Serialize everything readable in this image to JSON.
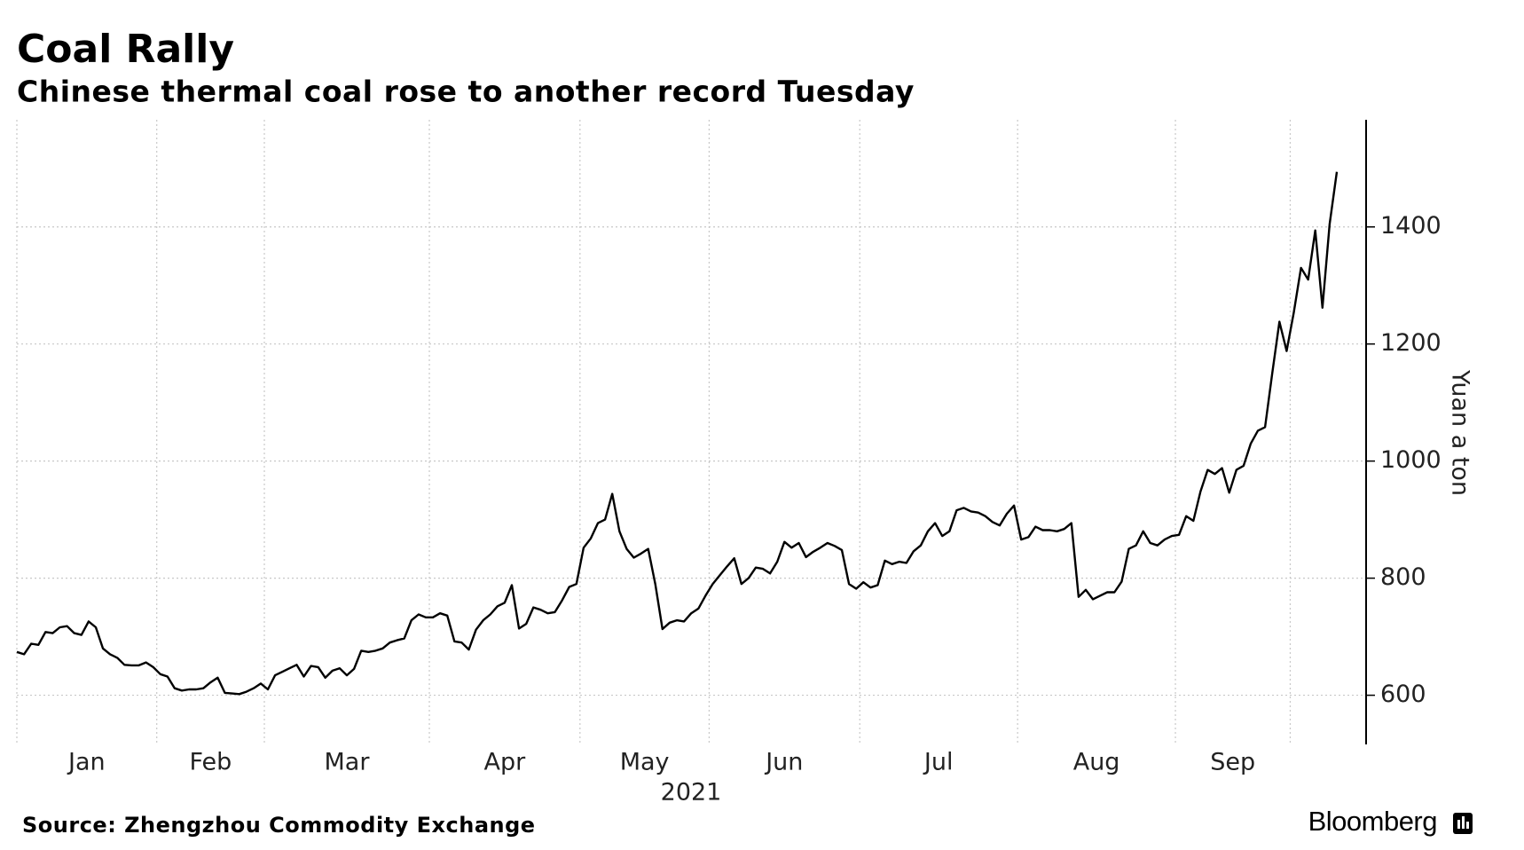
{
  "chart_data": {
    "type": "line",
    "title": "Coal Rally",
    "subtitle": "Chinese thermal coal rose to another record Tuesday",
    "x_label": "2021",
    "y_label": "Yuan a ton",
    "source": "Source: Zhengzhou Commodity Exchange",
    "brand": "Bloomberg",
    "color": "#000000",
    "grid": true,
    "categories": [
      "Jan",
      "Feb",
      "Mar",
      "Apr",
      "May",
      "Jun",
      "Jul",
      "Aug",
      "Sep",
      null
    ],
    "values": [
      [
        674,
        670,
        688,
        686,
        708,
        706,
        716,
        718,
        706,
        703,
        726,
        716,
        680,
        670,
        664,
        652,
        651,
        651,
        656,
        648
      ],
      [
        636,
        632,
        612,
        608,
        610,
        610,
        612,
        622,
        630,
        604,
        603,
        602,
        606,
        612,
        620
      ],
      [
        610,
        634,
        640,
        646,
        652,
        632,
        650,
        648,
        630,
        642,
        646,
        634,
        645,
        676,
        674,
        676,
        680,
        690,
        694,
        697,
        728,
        738,
        733
      ],
      [
        733,
        740,
        736,
        692,
        690,
        678,
        712,
        728,
        738,
        752,
        758,
        788,
        714,
        722,
        750,
        746,
        740,
        742,
        762,
        785,
        790
      ],
      [
        852,
        868,
        894,
        900,
        944,
        880,
        850,
        835,
        842,
        850,
        790,
        713,
        724,
        728,
        726,
        740,
        748,
        770
      ],
      [
        790,
        805,
        820,
        834,
        790,
        800,
        818,
        816,
        808,
        828,
        862,
        852,
        860,
        836,
        845,
        852,
        860,
        855,
        848,
        790,
        782
      ],
      [
        793,
        784,
        788,
        830,
        824,
        828,
        826,
        846,
        856,
        880,
        894,
        872,
        880,
        916,
        920,
        914,
        912,
        906,
        896,
        890,
        910,
        924
      ],
      [
        866,
        870,
        888,
        882,
        882,
        880,
        884,
        894,
        768,
        780,
        764,
        770,
        776,
        776,
        794,
        850,
        856,
        880,
        860,
        856,
        866,
        872
      ],
      [
        874,
        906,
        898,
        948,
        985,
        978,
        988,
        946,
        985,
        992,
        1030,
        1052,
        1058,
        1150,
        1238,
        1188
      ],
      [
        1254,
        1330,
        1310,
        1394,
        1262,
        1405,
        1494
      ]
    ],
    "ylim": [
      516,
      1583
    ],
    "yticks": [
      600,
      800,
      1000,
      1200,
      1400
    ]
  }
}
